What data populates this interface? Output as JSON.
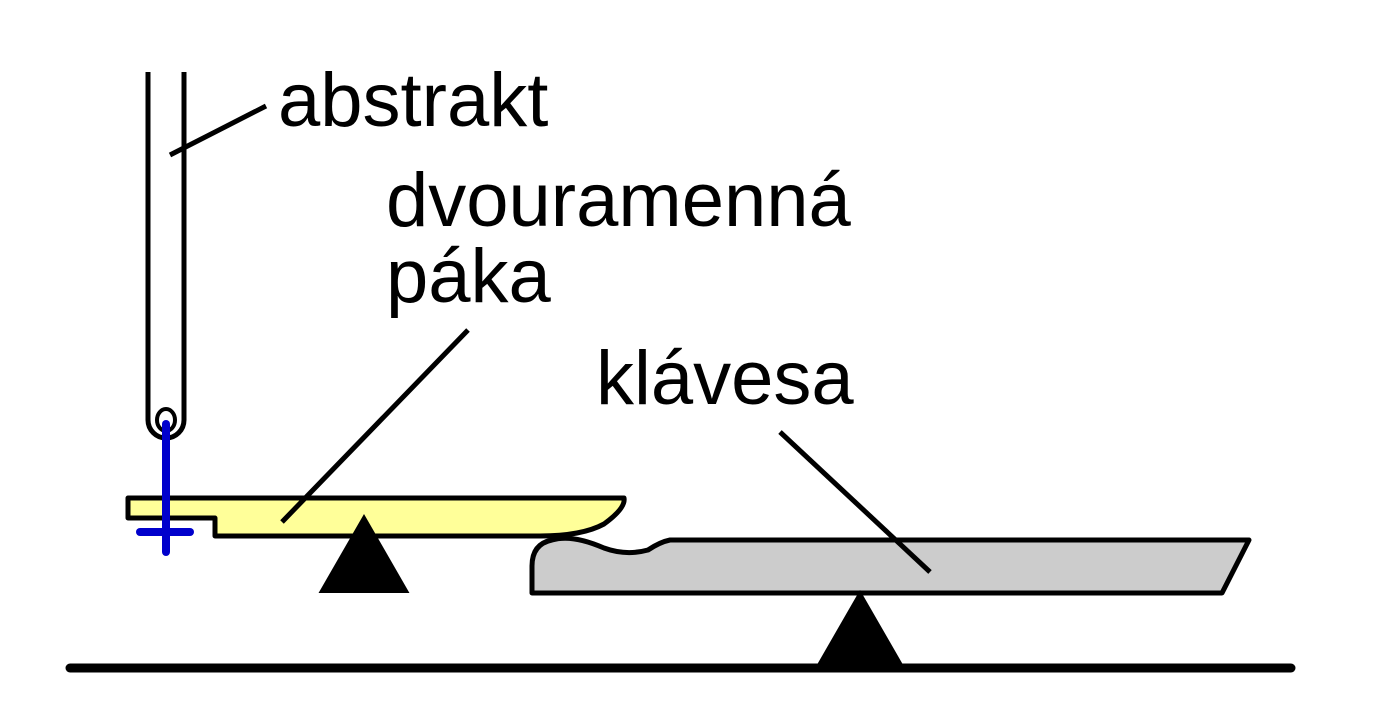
{
  "labels": {
    "abstract": "abstrakt",
    "lever_line1": "dvouramenná",
    "lever_line2": "páka",
    "key": "klávesa"
  },
  "colors": {
    "outline": "#000000",
    "lever_fill": "#ffff99",
    "key_fill": "#cccccc",
    "pin": "#0000cc",
    "fulcrum": "#000000",
    "background": "#ffffff"
  }
}
